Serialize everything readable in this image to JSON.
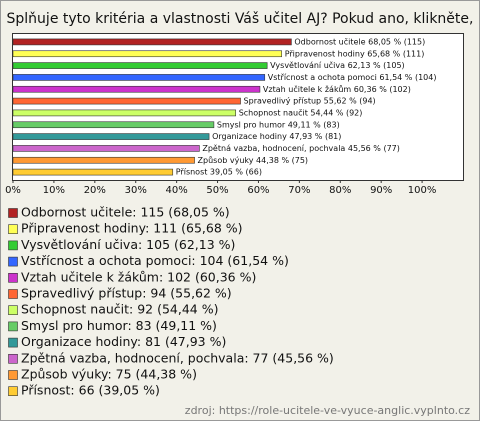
{
  "chart_data": {
    "type": "bar",
    "orientation": "horizontal",
    "title": "Splňuje tyto kritéria a vlastnosti Váš učitel AJ? Pokud ano, klikněte,",
    "categories": [
      "Odbornost učitele",
      "Připravenost hodiny",
      "Vysvětlování učiva",
      "Vstřícnost a ochota pomoci",
      "Vztah učitele k žákům",
      "Spravedlivý přístup",
      "Schopnost naučit",
      "Smysl pro humor",
      "Organizace hodiny",
      "Zpětná vazba, hodnocení, pochvala",
      "Způsob výuky",
      "Přísnost"
    ],
    "values": [
      68.05,
      65.68,
      62.13,
      61.54,
      60.36,
      55.62,
      54.44,
      49.11,
      47.93,
      45.56,
      44.38,
      39.05
    ],
    "value_labels": [
      "Odbornost učitele 68,05 % (115)",
      "Připravenost hodiny 65,68 % (111)",
      "Vysvětlování učiva 62,13 % (105)",
      "Vstřícnost a ochota pomoci 61,54 % (104)",
      "Vztah učitele k žákům 60,36 % (102)",
      "Spravedlivý přístup 55,62 % (94)",
      "Schopnost naučit 54,44 % (92)",
      "Smysl pro humor 49,11 % (83)",
      "Organizace hodiny 47,93 % (81)",
      "Zpětná vazba, hodnocení, pochvala 45,56 % (77)",
      "Způsob výuky 44,38 % (75)",
      "Přísnost 39,05 % (66)"
    ],
    "legend_labels": [
      "Odbornost učitele: 115 (68,05 %)",
      "Připravenost hodiny: 111 (65,68 %)",
      "Vysvětlování učiva: 105 (62,13 %)",
      "Vstřícnost a ochota pomoci: 104 (61,54 %)",
      "Vztah učitele k žákům: 102 (60,36 %)",
      "Spravedlivý přístup: 94 (55,62 %)",
      "Schopnost naučit: 92 (54,44 %)",
      "Smysl pro humor: 83 (49,11 %)",
      "Organizace hodiny: 81 (47,93 %)",
      "Zpětná vazba, hodnocení, pochvala: 77 (45,56 %)",
      "Způsob výuky: 75 (44,38 %)",
      "Přísnost: 66 (39,05 %)"
    ],
    "colors": [
      "#b22222",
      "#ffff55",
      "#33cc33",
      "#3366ff",
      "#cc33cc",
      "#ff6633",
      "#ccff66",
      "#66cc66",
      "#339999",
      "#cc66cc",
      "#ff9933",
      "#ffcc33"
    ],
    "xlim": [
      0,
      110
    ],
    "xticks": [
      {
        "value": 0,
        "label": "0%"
      },
      {
        "value": 10,
        "label": "10%"
      },
      {
        "value": 20,
        "label": "20%"
      },
      {
        "value": 30,
        "label": "30%"
      },
      {
        "value": 40,
        "label": "40%"
      },
      {
        "value": 50,
        "label": "50%"
      },
      {
        "value": 60,
        "label": "60%"
      },
      {
        "value": 70,
        "label": "70%"
      },
      {
        "value": 80,
        "label": "80%"
      },
      {
        "value": 90,
        "label": "90%"
      },
      {
        "value": 100,
        "label": "100%"
      }
    ],
    "grid": false,
    "source": "zdroj: https://role-ucitele-ve-vyuce-anglic.vyplnto.cz"
  }
}
